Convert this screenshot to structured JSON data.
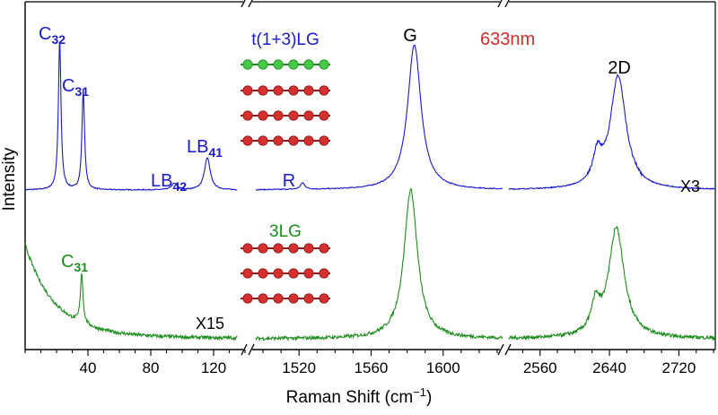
{
  "chart_data": {
    "type": "line",
    "xlabel": "Raman Shift (cm",
    "xlabel_sup": "−1",
    "xlabel_end": ")",
    "ylabel": "Intensity",
    "wavelength": "633nm",
    "colors": {
      "top": "#1a1acc",
      "bottom": "#1e8c1e",
      "red": "#d42a2a",
      "axis": "#000000"
    },
    "segments": [
      {
        "id": "low",
        "xlim": [
          0,
          140
        ],
        "ticks": [
          40,
          80,
          120
        ],
        "minor_step": 10
      },
      {
        "id": "mid",
        "xlim": [
          1493,
          1633
        ],
        "ticks": [
          1520,
          1560,
          1600
        ],
        "minor_step": 10
      },
      {
        "id": "high",
        "xlim": [
          2522,
          2762
        ],
        "ticks": [
          2560,
          2640,
          2720
        ],
        "minor_step": 20
      }
    ],
    "series": [
      {
        "name": "t(1+3)LG",
        "scale_label": "X3",
        "peaks": [
          {
            "segment": "low",
            "x": 22,
            "label": "C",
            "sub": "32",
            "value": 0.93
          },
          {
            "segment": "low",
            "x": 37,
            "label": "C",
            "sub": "31",
            "value": 0.62
          },
          {
            "segment": "low",
            "x": 95,
            "label": "LB",
            "sub": "42",
            "value": 0.04
          },
          {
            "segment": "low",
            "x": 116,
            "label": "LB",
            "sub": "41",
            "value": 0.2
          },
          {
            "segment": "mid",
            "x": 1522,
            "label": "R",
            "sub": "",
            "value": 0.04
          },
          {
            "segment": "mid",
            "x": 1584,
            "label": "G",
            "sub": "",
            "value": 0.9
          },
          {
            "segment": "high",
            "x": 2650,
            "label": "2D",
            "sub": "",
            "value": 0.7
          }
        ]
      },
      {
        "name": "3LG",
        "scale_label": "X15",
        "peaks": [
          {
            "segment": "low",
            "x": 36,
            "label": "C",
            "sub": "31",
            "value": 0.32
          },
          {
            "segment": "mid",
            "x": 1582,
            "label": "",
            "sub": "",
            "value": 0.95
          },
          {
            "segment": "high",
            "x": 2648,
            "label": "",
            "sub": "",
            "value": 0.7
          }
        ]
      }
    ]
  }
}
